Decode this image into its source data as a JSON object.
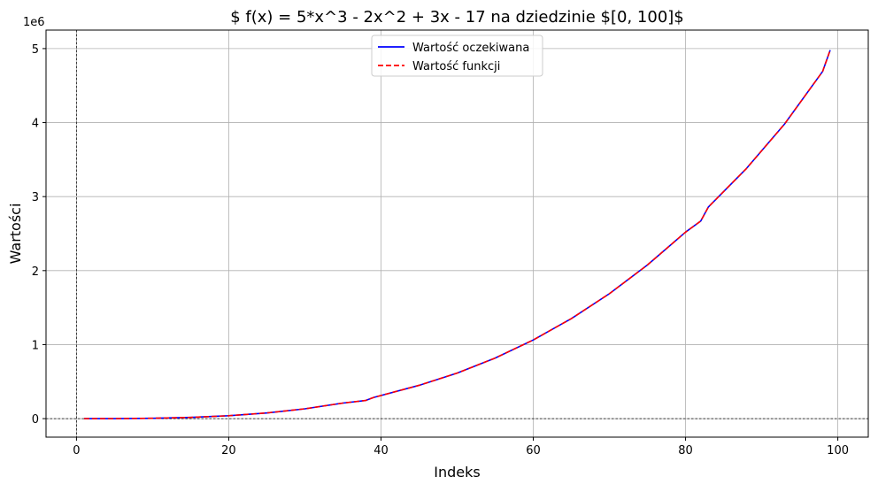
{
  "chart_data": {
    "type": "line",
    "title": "$ f(x) = 5*x^3 - 2x^2 + 3x - 17 na dziedzinie $[0, 100]$",
    "xlabel": "Indeks",
    "ylabel": "Wartości",
    "y_offset_text": "1e6",
    "xlim": [
      -4,
      104
    ],
    "ylim": [
      -0.25,
      5.25
    ],
    "x_ticks": [
      0,
      20,
      40,
      60,
      80,
      100
    ],
    "x_tick_labels": [
      "0",
      "20",
      "40",
      "60",
      "80",
      "100"
    ],
    "y_ticks": [
      0,
      1,
      2,
      3,
      4,
      5
    ],
    "y_tick_labels": [
      "0",
      "1",
      "2",
      "3",
      "4",
      "5"
    ],
    "grid": true,
    "reference_lines": {
      "x": 0,
      "y": 0
    },
    "legend_position": "upper center",
    "series": [
      {
        "name": "Wartość oczekiwana",
        "color": "#0000ff",
        "style": "solid",
        "x": [
          1,
          5,
          10,
          15,
          20,
          25,
          30,
          35,
          38,
          39,
          45,
          50,
          55,
          60,
          65,
          70,
          75,
          80,
          82,
          83,
          88,
          93,
          98,
          99
        ],
        "y": [
          0.0,
          0.0006,
          0.0048,
          0.0166,
          0.0393,
          0.0768,
          0.1325,
          0.2104,
          0.246,
          0.285,
          0.4501,
          0.6153,
          0.819,
          1.0632,
          1.3517,
          1.6884,
          2.0766,
          2.5202,
          2.67,
          2.86,
          3.38,
          3.98,
          4.69,
          4.98
        ]
      },
      {
        "name": "Wartość funkcji",
        "color": "#ff0000",
        "style": "dashed",
        "x": [
          1,
          5,
          10,
          15,
          20,
          25,
          30,
          35,
          38,
          39,
          45,
          50,
          55,
          60,
          65,
          70,
          75,
          80,
          82,
          83,
          88,
          93,
          98,
          99
        ],
        "y": [
          0.0,
          0.0006,
          0.0048,
          0.0166,
          0.0393,
          0.0768,
          0.1325,
          0.2104,
          0.246,
          0.285,
          0.4501,
          0.6153,
          0.819,
          1.0632,
          1.3517,
          1.6884,
          2.0766,
          2.5202,
          2.67,
          2.86,
          3.38,
          3.98,
          4.69,
          4.98
        ]
      }
    ]
  }
}
